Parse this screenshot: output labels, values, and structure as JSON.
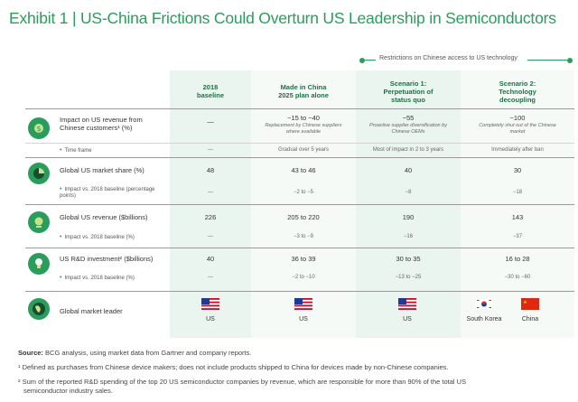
{
  "title": "Exhibit 1 | US-China Frictions Could Overturn US Leadership in Semiconductors",
  "legend": "Restrictions on Chinese access to US technology",
  "colors": {
    "accent": "#2a9d5c",
    "panel": "#eaf5ef"
  },
  "columns": [
    "2018\nbaseline",
    "Made in China\n2025 plan alone",
    "Scenario 1:\nPerpetuation of\nstatus quo",
    "Scenario 2:\nTechnology\ndecoupling"
  ],
  "rows": {
    "impact_china": {
      "label": "Impact on US revenue from Chinese customers¹ (%)",
      "icon": "dollar-china-icon",
      "values": [
        "—",
        "−15 to −40",
        "−55",
        "−100"
      ],
      "notes": [
        "",
        "Replacement by Chinese suppliers where available",
        "Proactive supplier diversification by Chinese OEMs",
        "Completely shut out of the Chinese market"
      ]
    },
    "time_frame": {
      "label": "Time frame",
      "values": [
        "—",
        "Gradual over 5 years",
        "Most of impact in 2 to 3 years",
        "Immediately after ban"
      ]
    },
    "market_share": {
      "label": "Global US market share (%)",
      "icon": "pie-chart-icon",
      "values": [
        "48",
        "43 to 46",
        "40",
        "30"
      ],
      "sub_label": "Impact vs. 2018 baseline (percentage points)",
      "sub_values": [
        "—",
        "−2 to −5",
        "−8",
        "−18"
      ]
    },
    "revenue": {
      "label": "Global US revenue ($billions)",
      "icon": "money-icon",
      "values": [
        "226",
        "205 to 220",
        "190",
        "143"
      ],
      "sub_label": "Impact vs. 2018 baseline (%)",
      "sub_values": [
        "—",
        "−3 to −9",
        "−16",
        "−37"
      ]
    },
    "rd": {
      "label": "US R&D investment² ($billions)",
      "icon": "lightbulb-icon",
      "values": [
        "40",
        "36 to 39",
        "30 to 35",
        "16 to 28"
      ],
      "sub_label": "Impact vs. 2018 baseline (%)",
      "sub_values": [
        "—",
        "−2 to −10",
        "−13 to −25",
        "−30 to −60"
      ]
    },
    "leader": {
      "label": "Global market leader",
      "icon": "globe-icon",
      "leaders": [
        "US",
        "US",
        "US",
        "South Korea",
        "China"
      ]
    }
  },
  "footnotes": {
    "source_label": "Source:",
    "source": "BCG analysis, using market data from Gartner and company reports.",
    "note1": "¹ Defined as purchases from Chinese device makers; does not include products shipped to China for devices made by non-Chinese companies.",
    "note2a": "² Sum of the reported R&D spending of the top 20 US semiconductor companies by revenue, which are responsible for more than 90% of the total US",
    "note2b": "semiconductor industry sales."
  }
}
